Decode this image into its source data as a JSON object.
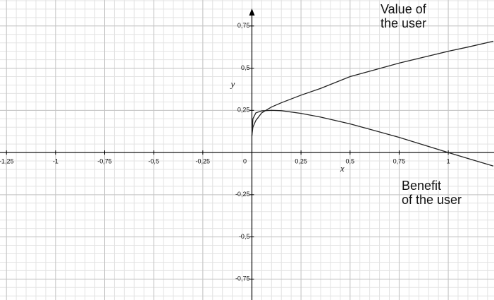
{
  "chart_data": {
    "type": "line",
    "x": [
      0,
      0.005,
      0.02,
      0.05,
      0.1,
      0.15,
      0.25,
      0.35,
      0.5,
      0.625,
      0.75,
      0.875,
      1,
      1.1,
      1.23
    ],
    "series": [
      {
        "name": "Value of\nthe user",
        "color": "#222222",
        "values": [
          0.1,
          0.15,
          0.19,
          0.235,
          0.27,
          0.295,
          0.34,
          0.38,
          0.45,
          0.49,
          0.53,
          0.565,
          0.6,
          0.625,
          0.66
        ]
      },
      {
        "name": "Benefit\nof the user",
        "color": "#222222",
        "values": [
          0.1,
          0.2,
          0.235,
          0.247,
          0.25,
          0.248,
          0.232,
          0.21,
          0.17,
          0.13,
          0.09,
          0.045,
          0.0,
          -0.035,
          -0.08
        ]
      }
    ],
    "x_label": "x",
    "y_label": "y",
    "xlim": [
      -1.283,
      1.233
    ],
    "ylim": [
      -0.874,
      0.904
    ],
    "xticks": [
      {
        "value": -1.25,
        "label": "-1,25"
      },
      -1,
      {
        "value": -0.75,
        "label": "-0,75"
      },
      {
        "value": -0.5,
        "label": "-0,5"
      },
      {
        "value": -0.25,
        "label": "-0,25"
      },
      0,
      {
        "value": 0.25,
        "label": "0,25"
      },
      {
        "value": 0.5,
        "label": "0,5"
      },
      {
        "value": 0.75,
        "label": "0,75"
      },
      1
    ],
    "yticks": [
      {
        "value": -0.75,
        "label": "-0,75"
      },
      {
        "value": -0.5,
        "label": "-0,5"
      },
      {
        "value": -0.25,
        "label": "-0,25"
      },
      {
        "value": 0.25,
        "label": "0,25"
      },
      {
        "value": 0.5,
        "label": "0,5"
      },
      {
        "value": 0.75,
        "label": "0,75"
      }
    ],
    "grid": true,
    "minor_grid_step": 0.05
  }
}
